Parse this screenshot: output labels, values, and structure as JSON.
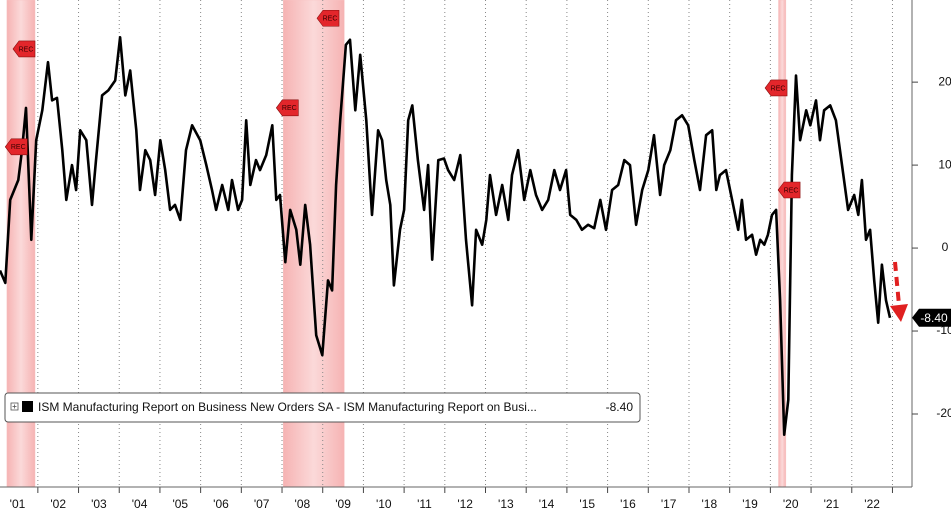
{
  "chart_data": {
    "type": "line",
    "series": [
      {
        "name": "ISM Manufacturing Report on Business New Orders SA - ISM Manufacturing Report on Busi...",
        "color": "#000000",
        "last_value_label": "-8.40",
        "x": [
          2001.07,
          2001.2,
          2001.32,
          2001.52,
          2001.61,
          2001.71,
          2001.84,
          2001.96,
          2002.11,
          2002.25,
          2002.35,
          2002.47,
          2002.6,
          2002.7,
          2002.84,
          2002.94,
          2003.04,
          2003.19,
          2003.33,
          2003.43,
          2003.58,
          2003.73,
          2003.9,
          2004.02,
          2004.15,
          2004.27,
          2004.42,
          2004.51,
          2004.64,
          2004.76,
          2004.88,
          2005.01,
          2005.13,
          2005.25,
          2005.37,
          2005.5,
          2005.64,
          2005.79,
          2005.99,
          2006.14,
          2006.28,
          2006.38,
          2006.53,
          2006.68,
          2006.77,
          2006.92,
          2007.02,
          2007.12,
          2007.22,
          2007.36,
          2007.46,
          2007.61,
          2007.76,
          2007.86,
          2007.95,
          2008.08,
          2008.2,
          2008.35,
          2008.45,
          2008.57,
          2008.69,
          2008.84,
          2008.99,
          2009.13,
          2009.23,
          2009.33,
          2009.43,
          2009.57,
          2009.67,
          2009.8,
          2009.92,
          2010.07,
          2010.21,
          2010.36,
          2010.46,
          2010.56,
          2010.66,
          2010.75,
          2010.9,
          2011.0,
          2011.1,
          2011.2,
          2011.34,
          2011.49,
          2011.59,
          2011.69,
          2011.84,
          2011.98,
          2012.08,
          2012.23,
          2012.38,
          2012.52,
          2012.67,
          2012.77,
          2012.92,
          2013.02,
          2013.11,
          2013.26,
          2013.41,
          2013.56,
          2013.65,
          2013.8,
          2013.95,
          2014.1,
          2014.24,
          2014.39,
          2014.54,
          2014.69,
          2014.83,
          2014.98,
          2015.08,
          2015.23,
          2015.37,
          2015.52,
          2015.67,
          2015.82,
          2015.96,
          2016.11,
          2016.26,
          2016.41,
          2016.55,
          2016.7,
          2016.85,
          2017.0,
          2017.14,
          2017.29,
          2017.39,
          2017.54,
          2017.68,
          2017.83,
          2017.98,
          2018.13,
          2018.27,
          2018.42,
          2018.57,
          2018.67,
          2018.76,
          2018.91,
          2019.06,
          2019.21,
          2019.3,
          2019.4,
          2019.55,
          2019.65,
          2019.75,
          2019.85,
          2019.94,
          2020.04,
          2020.14,
          2020.24,
          2020.34,
          2020.44,
          2020.53,
          2020.63,
          2020.73,
          2020.88,
          2020.98,
          2021.12,
          2021.22,
          2021.32,
          2021.47,
          2021.61,
          2021.76,
          2021.91,
          2022.06,
          2022.16,
          2022.25,
          2022.35,
          2022.45,
          2022.55,
          2022.65,
          2022.74,
          2022.84,
          2022.94
        ],
        "values": [
          -2.7,
          -4.2,
          5.8,
          8.2,
          11.8,
          16.9,
          1.0,
          13.0,
          16.6,
          22.4,
          17.8,
          18.1,
          11.8,
          5.8,
          10.0,
          7.0,
          14.2,
          13.0,
          5.2,
          10.6,
          18.4,
          19.0,
          20.2,
          25.4,
          18.4,
          21.4,
          14.2,
          7.0,
          11.8,
          10.6,
          6.4,
          13.0,
          9.4,
          4.6,
          5.2,
          3.4,
          11.8,
          14.8,
          13.0,
          10.0,
          7.0,
          4.6,
          7.6,
          4.6,
          8.2,
          4.6,
          5.8,
          15.4,
          7.6,
          10.6,
          9.4,
          11.2,
          14.8,
          5.8,
          6.4,
          -1.7,
          4.6,
          2.2,
          -2.0,
          5.2,
          0.4,
          -10.5,
          -12.9,
          -3.9,
          -5.1,
          7.6,
          15.4,
          24.5,
          25.1,
          16.6,
          23.3,
          15.4,
          4.0,
          14.2,
          13.0,
          8.2,
          5.2,
          -4.5,
          2.2,
          4.6,
          15.4,
          17.2,
          10.6,
          4.6,
          10.0,
          -1.4,
          10.6,
          10.8,
          9.4,
          8.2,
          11.2,
          1.0,
          -6.9,
          2.2,
          0.4,
          3.4,
          8.8,
          4.0,
          7.6,
          3.4,
          8.8,
          11.8,
          5.8,
          9.4,
          6.4,
          4.6,
          5.8,
          9.4,
          7.0,
          9.4,
          4.0,
          3.4,
          2.2,
          2.8,
          2.4,
          5.8,
          2.2,
          7.0,
          7.6,
          10.6,
          10.0,
          2.8,
          7.0,
          9.4,
          13.6,
          6.4,
          10.0,
          11.8,
          15.4,
          16.0,
          14.8,
          10.6,
          7.0,
          13.6,
          14.2,
          7.0,
          8.8,
          9.4,
          5.8,
          2.2,
          5.8,
          1.0,
          1.6,
          -0.8,
          1.0,
          0.4,
          1.6,
          4.0,
          4.6,
          -6.3,
          -22.5,
          -18.3,
          8.8,
          20.8,
          13.0,
          16.6,
          14.8,
          17.8,
          13.0,
          16.6,
          17.2,
          15.4,
          10.0,
          4.6,
          6.4,
          4.0,
          8.2,
          1.0,
          2.2,
          -3.9,
          -9.0,
          -2.0,
          -6.3,
          -8.4
        ]
      }
    ],
    "xlim": [
      2001.07,
      2023.48
    ],
    "ylim": [
      -28.8,
      29.9
    ],
    "yticks": [
      20,
      10,
      0,
      -10,
      -20
    ],
    "xticks": [
      {
        "value": 2001.5,
        "label": "'01"
      },
      {
        "value": 2002.5,
        "label": "'02"
      },
      {
        "value": 2003.5,
        "label": "'03"
      },
      {
        "value": 2004.5,
        "label": "'04"
      },
      {
        "value": 2005.5,
        "label": "'05"
      },
      {
        "value": 2006.5,
        "label": "'06"
      },
      {
        "value": 2007.5,
        "label": "'07"
      },
      {
        "value": 2008.5,
        "label": "'08"
      },
      {
        "value": 2009.5,
        "label": "'09"
      },
      {
        "value": 2010.5,
        "label": "'10"
      },
      {
        "value": 2011.5,
        "label": "'11"
      },
      {
        "value": 2012.5,
        "label": "'12"
      },
      {
        "value": 2013.5,
        "label": "'13"
      },
      {
        "value": 2014.5,
        "label": "'14"
      },
      {
        "value": 2015.5,
        "label": "'15"
      },
      {
        "value": 2016.5,
        "label": "'16"
      },
      {
        "value": 2017.5,
        "label": "'17"
      },
      {
        "value": 2018.5,
        "label": "'18"
      },
      {
        "value": 2019.5,
        "label": "'19"
      },
      {
        "value": 2020.5,
        "label": "'20"
      },
      {
        "value": 2021.5,
        "label": "'21"
      },
      {
        "value": 2022.5,
        "label": "'22"
      }
    ],
    "xgrid": [
      2002,
      2003,
      2004,
      2005,
      2006,
      2007,
      2008,
      2009,
      2010,
      2011,
      2012,
      2013,
      2014,
      2015,
      2016,
      2017,
      2018,
      2019,
      2020,
      2021,
      2022,
      2023
    ],
    "recessions": [
      {
        "start": 2001.24,
        "end": 2001.93
      },
      {
        "start": 2008.03,
        "end": 2009.53
      },
      {
        "start": 2020.2,
        "end": 2020.38
      }
    ],
    "recession_color": "#f7c4c4",
    "annotations": [
      {
        "text": "REC",
        "x": 2001.66,
        "y": 24.0
      },
      {
        "text": "REC",
        "x": 2001.47,
        "y": 12.2
      },
      {
        "text": "REC",
        "x": 2008.13,
        "y": 16.9
      },
      {
        "text": "REC",
        "x": 2009.13,
        "y": 27.7
      },
      {
        "text": "REC",
        "x": 2020.14,
        "y": 19.3
      },
      {
        "text": "REC",
        "x": 2020.46,
        "y": 7.0
      }
    ],
    "legend": "bottom-left"
  }
}
